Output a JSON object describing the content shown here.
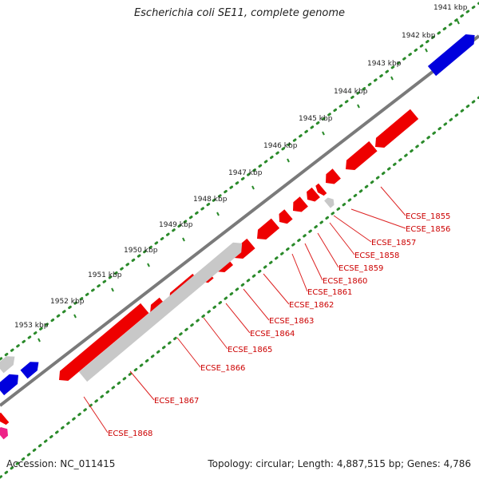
{
  "title": "Escherichia coli SE11, complete genome",
  "footer": {
    "accession": "Accession: NC_011415",
    "summary": "Topology: circular; Length: 4,887,515 bp; Genes: 4,786"
  },
  "ticks": [
    "1941 kbp",
    "1942 kbp",
    "1943 kbp",
    "1944 kbp",
    "1945 kbp",
    "1946 kbp",
    "1947 kbp",
    "1948 kbp",
    "1949 kbp",
    "1950 kbp",
    "1951 kbp",
    "1952 kbp",
    "1953 kbp"
  ],
  "gene_labels": [
    "ECSE_1855",
    "ECSE_1856",
    "ECSE_1857",
    "ECSE_1858",
    "ECSE_1859",
    "ECSE_1860",
    "ECSE_1861",
    "ECSE_1862",
    "ECSE_1863",
    "ECSE_1864",
    "ECSE_1865",
    "ECSE_1866",
    "ECSE_1867",
    "ECSE_1868"
  ],
  "colors": {
    "forward_cds": "#0000dd",
    "reverse_cds": "#ee0000",
    "pseudo": "#c8c8c8",
    "other": "#ee2288",
    "backbone": "#7a7a7a",
    "scale_dots": "#2a8a2a",
    "label": "#cc0000",
    "leader": "#dd2222"
  }
}
